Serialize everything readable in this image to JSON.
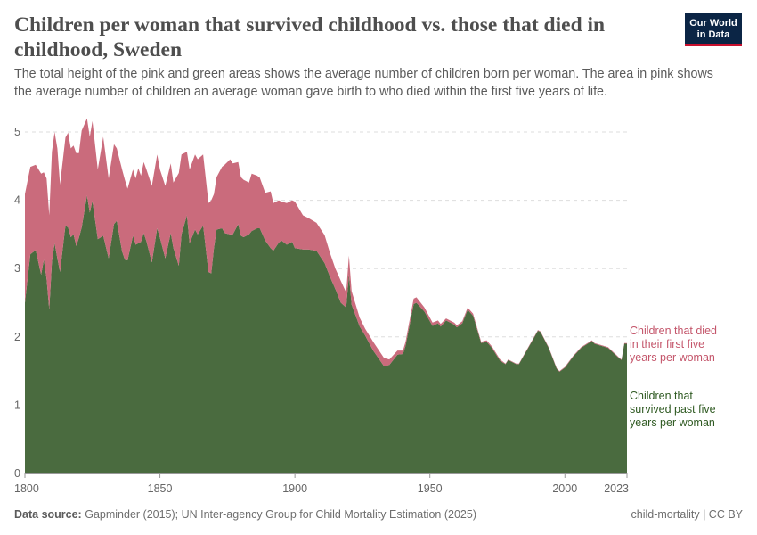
{
  "header": {
    "title": "Children per woman that survived childhood vs. those that died in childhood, Sweden",
    "subtitle": "The total height of the pink and green areas shows the average number of children born per woman. The area in pink shows the average number of children an average woman gave birth to who died within the first five years of life.",
    "logo_text": "Our World in Data"
  },
  "footer": {
    "source_label": "Data source:",
    "source_text": "Gapminder (2015); UN Inter-agency Group for Child Mortality Estimation (2025)",
    "license": "child-mortality | CC BY"
  },
  "chart_data": {
    "type": "area",
    "stacked": true,
    "title": "Children per woman that survived childhood vs. those that died in childhood, Sweden",
    "xlim": [
      1800,
      2023
    ],
    "ylim": [
      0,
      5
    ],
    "x_ticks": [
      "1800",
      "1850",
      "1900",
      "1950",
      "2000",
      "2023"
    ],
    "y_ticks": [
      "0",
      "1",
      "2",
      "3",
      "4",
      "5"
    ],
    "grid": "horizontal dashed",
    "legend_placement": "right, inline labels",
    "x": [
      1800,
      1802,
      1804,
      1806,
      1807,
      1808,
      1809,
      1810,
      1811,
      1812,
      1813,
      1815,
      1816,
      1817,
      1818,
      1819,
      1820,
      1821,
      1823,
      1824,
      1825,
      1827,
      1829,
      1831,
      1833,
      1834,
      1836,
      1837,
      1838,
      1840,
      1841,
      1842,
      1843,
      1844,
      1845,
      1847,
      1849,
      1850,
      1852,
      1854,
      1855,
      1857,
      1858,
      1860,
      1861,
      1863,
      1864,
      1866,
      1868,
      1869,
      1870,
      1871,
      1873,
      1874,
      1876,
      1877,
      1879,
      1880,
      1881,
      1883,
      1884,
      1886,
      1887,
      1889,
      1891,
      1892,
      1894,
      1895,
      1897,
      1899,
      1900,
      1903,
      1905,
      1908,
      1911,
      1913,
      1915,
      1917,
      1919,
      1920,
      1921,
      1924,
      1926,
      1929,
      1933,
      1935,
      1938,
      1940,
      1941,
      1944,
      1945,
      1948,
      1951,
      1953,
      1954,
      1956,
      1959,
      1960,
      1962,
      1964,
      1966,
      1969,
      1971,
      1973,
      1976,
      1978,
      1979,
      1982,
      1983,
      1986,
      1990,
      1991,
      1994,
      1997,
      1998,
      2000,
      2003,
      2006,
      2010,
      2011,
      2016,
      2020,
      2021,
      2022,
      2023
    ],
    "series": [
      {
        "name": "Children that survived past five years per woman",
        "color": "#4a6b3f",
        "values": [
          2.5,
          3.21,
          3.27,
          2.91,
          3.13,
          2.85,
          2.4,
          3.1,
          3.37,
          3.15,
          2.95,
          3.63,
          3.6,
          3.46,
          3.5,
          3.33,
          3.45,
          3.6,
          4.07,
          3.82,
          3.99,
          3.43,
          3.48,
          3.15,
          3.65,
          3.7,
          3.25,
          3.13,
          3.12,
          3.48,
          3.35,
          3.37,
          3.39,
          3.52,
          3.4,
          3.09,
          3.59,
          3.45,
          3.15,
          3.52,
          3.3,
          3.04,
          3.5,
          3.78,
          3.37,
          3.57,
          3.5,
          3.63,
          2.95,
          2.93,
          3.3,
          3.57,
          3.59,
          3.52,
          3.5,
          3.5,
          3.65,
          3.48,
          3.46,
          3.5,
          3.55,
          3.59,
          3.59,
          3.41,
          3.3,
          3.26,
          3.38,
          3.41,
          3.35,
          3.39,
          3.3,
          3.28,
          3.28,
          3.26,
          3.08,
          2.88,
          2.7,
          2.5,
          2.43,
          2.91,
          2.47,
          2.15,
          2.02,
          1.8,
          1.57,
          1.59,
          1.74,
          1.75,
          1.87,
          2.48,
          2.5,
          2.37,
          2.16,
          2.2,
          2.15,
          2.24,
          2.18,
          2.14,
          2.2,
          2.4,
          2.31,
          1.91,
          1.93,
          1.84,
          1.65,
          1.6,
          1.66,
          1.6,
          1.6,
          1.81,
          2.09,
          2.07,
          1.84,
          1.53,
          1.49,
          1.55,
          1.71,
          1.84,
          1.94,
          1.9,
          1.84,
          1.69,
          1.66,
          1.9,
          1.9
        ]
      },
      {
        "name": "Children that died in their first five years per woman",
        "color": "#ca6b7c",
        "values": [
          1.59,
          1.28,
          1.25,
          1.48,
          1.28,
          1.47,
          1.38,
          1.61,
          1.63,
          1.61,
          1.28,
          1.29,
          1.39,
          1.3,
          1.3,
          1.36,
          1.24,
          1.42,
          1.13,
          1.11,
          1.17,
          1.02,
          1.45,
          1.17,
          1.17,
          1.06,
          1.2,
          1.17,
          1.05,
          0.97,
          0.97,
          1.1,
          0.97,
          1.04,
          1.05,
          1.12,
          1.08,
          1.0,
          1.06,
          1.02,
          0.96,
          1.36,
          1.17,
          0.93,
          1.08,
          1.1,
          1.1,
          1.04,
          1.01,
          1.07,
          0.79,
          0.77,
          0.9,
          1.0,
          1.1,
          1.04,
          0.91,
          0.86,
          0.84,
          0.76,
          0.84,
          0.77,
          0.74,
          0.7,
          0.83,
          0.7,
          0.62,
          0.57,
          0.61,
          0.61,
          0.68,
          0.5,
          0.46,
          0.41,
          0.41,
          0.35,
          0.3,
          0.32,
          0.22,
          0.28,
          0.2,
          0.13,
          0.1,
          0.13,
          0.12,
          0.08,
          0.06,
          0.05,
          0.06,
          0.08,
          0.08,
          0.06,
          0.05,
          0.04,
          0.04,
          0.03,
          0.03,
          0.03,
          0.03,
          0.03,
          0.03,
          0.02,
          0.02,
          0.02,
          0.02,
          0.01,
          0.01,
          0.01,
          0.01,
          0.01,
          0.01,
          0.01,
          0.01,
          0.01,
          0.01,
          0.01,
          0.01,
          0.01,
          0.01,
          0.01,
          0.01,
          0.01,
          0.01,
          0.01,
          0.01
        ]
      }
    ],
    "legend": {
      "died_label": "Children that died in their first five years per woman",
      "survived_label": "Children that survived past five years per woman",
      "died_text_color": "#c4566b",
      "survived_text_color": "#2f5a22"
    }
  }
}
